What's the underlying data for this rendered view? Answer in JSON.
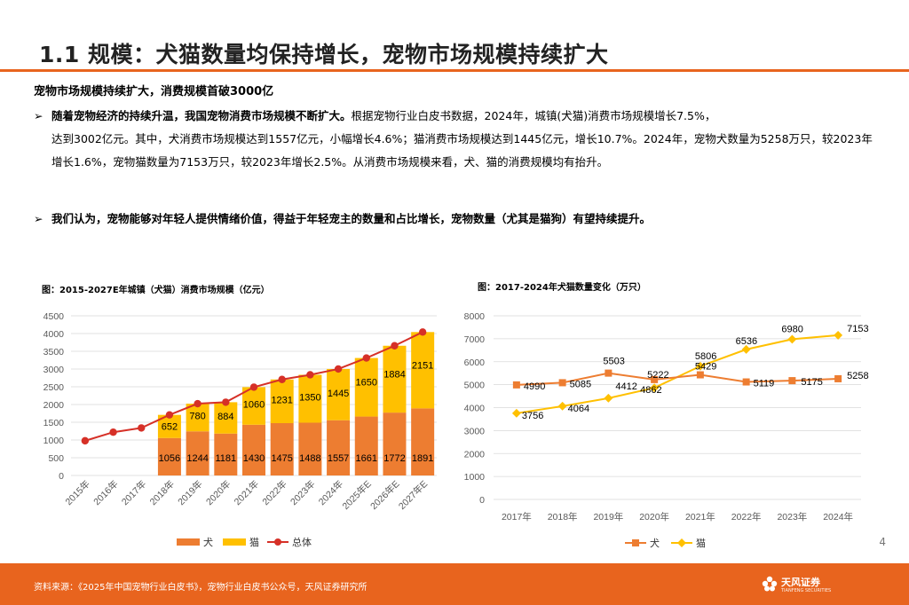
{
  "header": {
    "title": "1.1 规模：犬猫数量均保持增长，宠物市场规模持续扩大"
  },
  "summary": {
    "subtitle": "宠物市场规模持续扩大，消费规模首破3000亿",
    "bullet1_bold": "随着宠物经济的持续升温，我国宠物消费市场规模不断扩大。",
    "bullet1_text": "根据宠物行业白皮书数据，2024年，城镇(犬猫)消费市场规模增长7.5%，",
    "bullet1_cont": "达到3002亿元。其中，犬消费市场规模达到1557亿元，小幅增长4.6%；猫消费市场规模达到1445亿元，增长10.7%。2024年，宠物犬数量为5258万只，较2023年增长1.6%，宠物猫数量为7153万只，较2023年增长2.5%。从消费市场规模来看，犬、猫的消费规模均有抬升。",
    "bullet2": "我们认为，宠物能够对年轻人提供情绪价值，得益于年轻宠主的数量和占比增长，宠物数量（尤其是猫狗）有望持续提升。"
  },
  "colors": {
    "accent": "#e8641e",
    "dog": "#ed7d31",
    "cat": "#ffc000",
    "total": "#d63027"
  },
  "chart_data": [
    {
      "type": "bar",
      "title": "图：2015-2027E年城镇（犬猫）消费市场规模（亿元）",
      "categories": [
        "2015年",
        "2016年",
        "2017年",
        "2018年",
        "2019年",
        "2020年",
        "2021年",
        "2022年",
        "2023年",
        "2024年",
        "2025年E",
        "2026年E",
        "2027年E"
      ],
      "stacked": true,
      "series": [
        {
          "name": "犬",
          "values": [
            null,
            null,
            null,
            1056,
            1244,
            1181,
            1430,
            1475,
            1488,
            1557,
            1661,
            1772,
            1891
          ]
        },
        {
          "name": "猫",
          "values": [
            null,
            null,
            null,
            652,
            780,
            884,
            1060,
            1231,
            1350,
            1445,
            1650,
            1884,
            2151
          ]
        },
        {
          "name": "总体",
          "type": "line",
          "values": [
            978,
            1220,
            1340,
            1708,
            2024,
            2065,
            2490,
            2706,
            2838,
            3002,
            3311,
            3656,
            4042
          ]
        }
      ],
      "ylim": [
        0,
        4500
      ],
      "yticks": [
        0,
        500,
        1000,
        1500,
        2000,
        2500,
        3000,
        3500,
        4000,
        4500
      ],
      "grid": true,
      "legend": "bottom"
    },
    {
      "type": "line",
      "title": "图：2017-2024年犬猫数量变化（万只）",
      "categories": [
        "2017年",
        "2018年",
        "2019年",
        "2020年",
        "2021年",
        "2022年",
        "2023年",
        "2024年"
      ],
      "series": [
        {
          "name": "犬",
          "values": [
            4990,
            5085,
            5503,
            5222,
            5429,
            5119,
            5175,
            5258
          ]
        },
        {
          "name": "猫",
          "values": [
            3756,
            4064,
            4412,
            4862,
            5806,
            6536,
            6980,
            7153
          ]
        }
      ],
      "ylim": [
        0,
        8000
      ],
      "yticks": [
        0,
        1000,
        2000,
        3000,
        4000,
        5000,
        6000,
        7000,
        8000
      ],
      "grid": true,
      "legend": "bottom"
    }
  ],
  "footer": {
    "source": "资料来源：《2025年中国宠物行业白皮书》，宠物行业白皮书公众号，天风证券研究所",
    "brand": "天风证券",
    "brand_sub": "TIANFENG SECURITIES",
    "page": "4"
  }
}
